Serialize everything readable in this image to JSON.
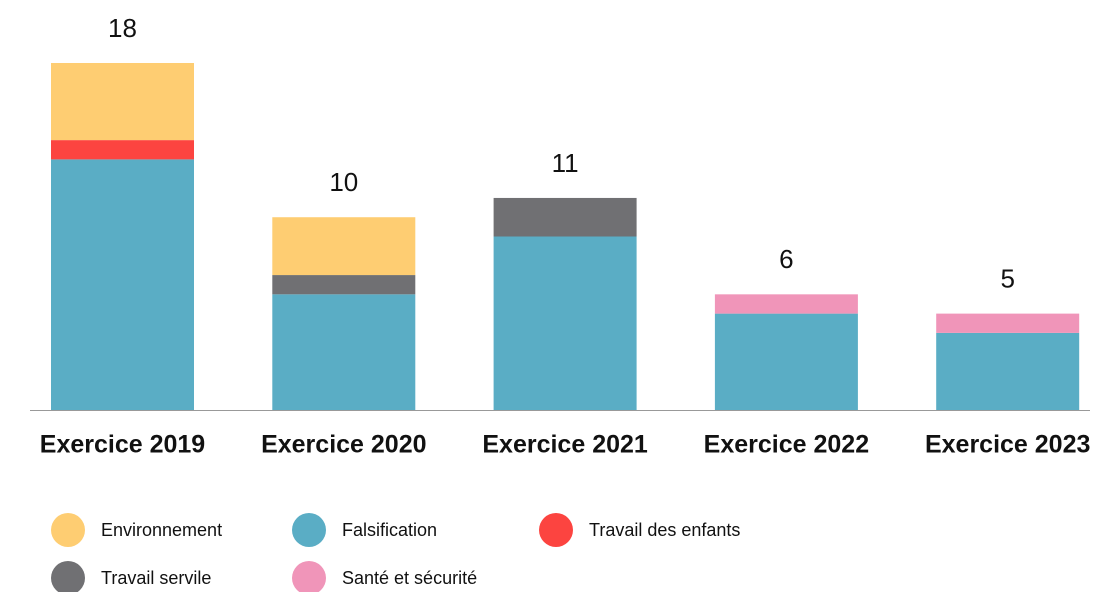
{
  "chart_data": {
    "type": "stacked_bar",
    "categories": [
      "Exercice 2019",
      "Exercice 2020",
      "Exercice 2021",
      "Exercice 2022",
      "Exercice 2023"
    ],
    "series": [
      {
        "name": "Environnement",
        "color": "#fecd72",
        "values": [
          4,
          3,
          0,
          0,
          0
        ]
      },
      {
        "name": "Falsification",
        "color": "#5aadc5",
        "values": [
          13,
          6,
          9,
          5,
          4
        ]
      },
      {
        "name": "Travail des enfants",
        "color": "#fc4440",
        "values": [
          1,
          0,
          0,
          0,
          0
        ]
      },
      {
        "name": "Travail servile",
        "color": "#707073",
        "values": [
          0,
          1,
          2,
          0,
          0
        ]
      },
      {
        "name": "Santé et sécurité",
        "color": "#f095b9",
        "values": [
          0,
          0,
          0,
          1,
          1
        ]
      }
    ],
    "totals": [
      18,
      10,
      11,
      6,
      5
    ],
    "ylim": [
      0,
      18
    ]
  }
}
